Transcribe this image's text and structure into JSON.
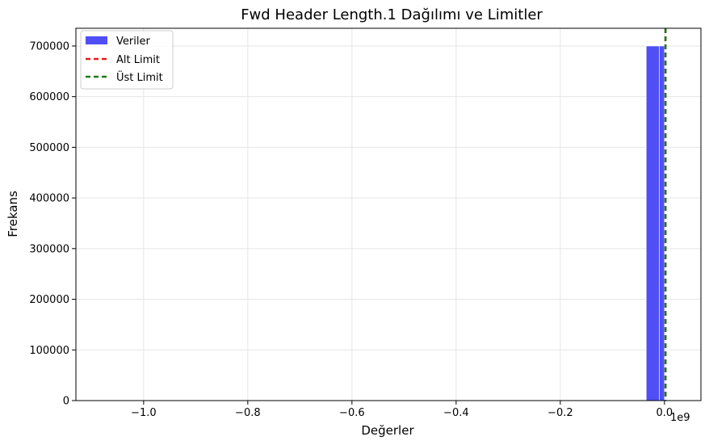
{
  "chart_data": {
    "type": "bar",
    "title": "Fwd Header Length.1 Dağılımı ve Limitler",
    "xlabel": "Değerler",
    "ylabel": "Frekans",
    "x_offset_label": "1e9",
    "xlim": [
      -1.13,
      0.07
    ],
    "ylim": [
      0,
      735000
    ],
    "x_ticks": [
      -1.0,
      -0.8,
      -0.6,
      -0.4,
      -0.2,
      0.0
    ],
    "x_tick_labels": [
      "−1.0",
      "−0.8",
      "−0.6",
      "−0.4",
      "−0.2",
      "0.0"
    ],
    "y_ticks": [
      0,
      100000,
      200000,
      300000,
      400000,
      500000,
      600000,
      700000
    ],
    "y_tick_labels": [
      "0",
      "100000",
      "200000",
      "300000",
      "400000",
      "500000",
      "600000",
      "700000"
    ],
    "grid": true,
    "legend_position": "top-left",
    "series": [
      {
        "name": "Veriler",
        "kind": "histogram",
        "color": "#4b4bf5",
        "bins": [
          {
            "x0": -0.035,
            "x1": -0.01,
            "count": 700000
          },
          {
            "x0": -0.01,
            "x1": 0.0,
            "count": 700000
          }
        ]
      },
      {
        "name": "Alt Limit",
        "kind": "vline",
        "x": 0.002,
        "color": "#e41a1c",
        "style": "dashed"
      },
      {
        "name": "Üst Limit",
        "kind": "vline",
        "x": 0.002,
        "color": "#1a7a1a",
        "style": "dashed"
      }
    ]
  }
}
